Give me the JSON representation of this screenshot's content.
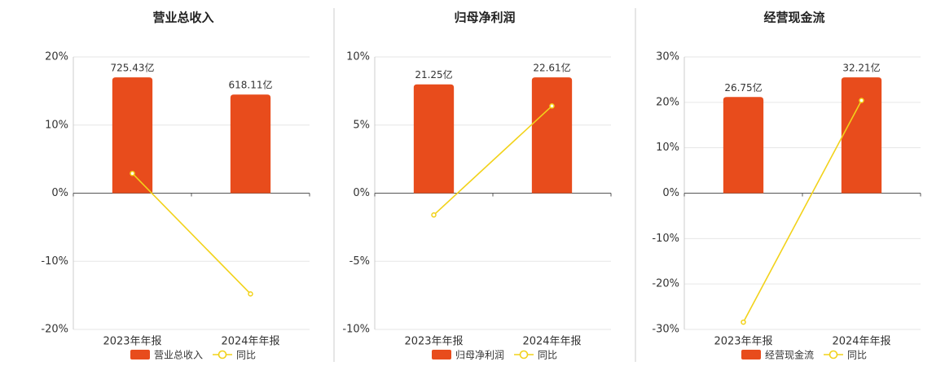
{
  "chart_data": [
    {
      "type": "bar",
      "title": "营业总收入",
      "categories": [
        "2023年年报",
        "2024年年报"
      ],
      "series": [
        {
          "name": "营业总收入",
          "type": "bar",
          "color": "#e84c1c",
          "values": [
            725.43,
            618.11
          ],
          "value_labels": [
            "725.43亿",
            "618.11亿"
          ]
        },
        {
          "name": "同比",
          "type": "line",
          "color": "#f2d21a",
          "values": [
            2.9,
            -14.79
          ]
        }
      ],
      "ylim": [
        -20,
        20
      ],
      "yticks": [
        {
          "value": 20,
          "label": "20%"
        },
        {
          "value": 10,
          "label": "10%"
        },
        {
          "value": 0,
          "label": "0%"
        },
        {
          "value": -10,
          "label": "-10%"
        },
        {
          "value": -20,
          "label": "-20%"
        }
      ],
      "grid": true
    },
    {
      "type": "bar",
      "title": "归母净利润",
      "categories": [
        "2023年年报",
        "2024年年报"
      ],
      "series": [
        {
          "name": "归母净利润",
          "type": "bar",
          "color": "#e84c1c",
          "values": [
            21.25,
            22.61
          ],
          "value_labels": [
            "21.25亿",
            "22.61亿"
          ]
        },
        {
          "name": "同比",
          "type": "line",
          "color": "#f2d21a",
          "values": [
            -1.6,
            6.4
          ]
        }
      ],
      "ylim": [
        -10,
        10
      ],
      "yticks": [
        {
          "value": 10,
          "label": "10%"
        },
        {
          "value": 5,
          "label": "5%"
        },
        {
          "value": 0,
          "label": "0%"
        },
        {
          "value": -5,
          "label": "-5%"
        },
        {
          "value": -10,
          "label": "-10%"
        }
      ],
      "grid": true
    },
    {
      "type": "bar",
      "title": "经营现金流",
      "categories": [
        "2023年年报",
        "2024年年报"
      ],
      "series": [
        {
          "name": "经营现金流",
          "type": "bar",
          "color": "#e84c1c",
          "values": [
            26.75,
            32.21
          ],
          "value_labels": [
            "26.75亿",
            "32.21亿"
          ]
        },
        {
          "name": "同比",
          "type": "line",
          "color": "#f2d21a",
          "values": [
            -28.4,
            20.41
          ]
        }
      ],
      "ylim": [
        -30,
        30
      ],
      "yticks": [
        {
          "value": 30,
          "label": "30%"
        },
        {
          "value": 20,
          "label": "20%"
        },
        {
          "value": 10,
          "label": "10%"
        },
        {
          "value": 0,
          "label": "0%"
        },
        {
          "value": -10,
          "label": "-10%"
        },
        {
          "value": -20,
          "label": "-20%"
        },
        {
          "value": -30,
          "label": "-30%"
        }
      ],
      "grid": true
    }
  ]
}
